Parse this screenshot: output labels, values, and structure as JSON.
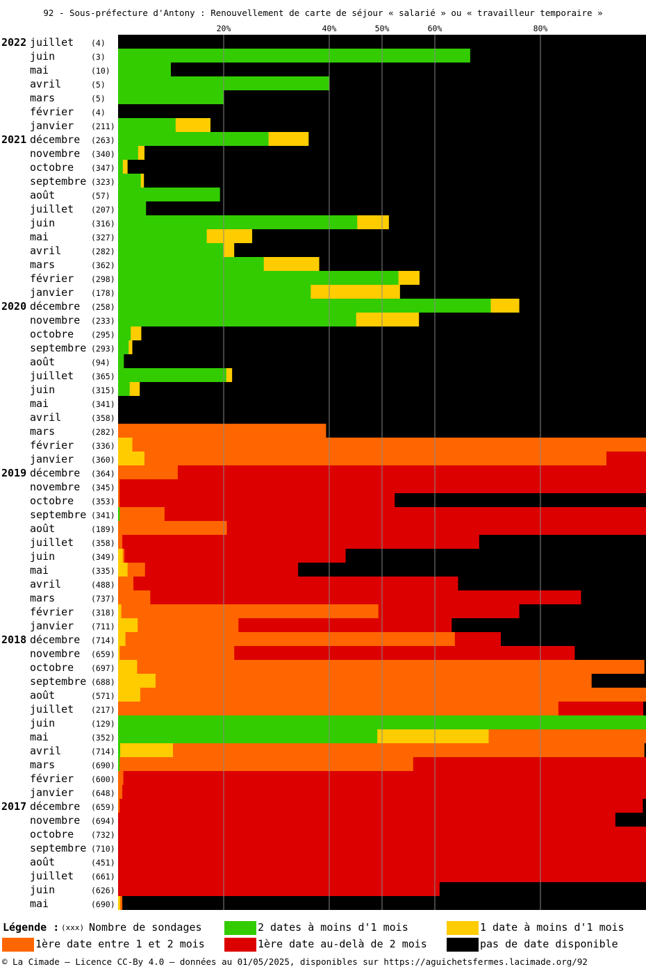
{
  "title": "92 - Sous-préfecture d'Antony : Renouvellement de carte de séjour « salarié » ou « travailleur temporaire »",
  "colors": {
    "green": "#33cc00",
    "yellow": "#ffcc00",
    "orange": "#ff6600",
    "red": "#dd0000",
    "black": "#000000",
    "grid": "#888888"
  },
  "legend": {
    "title": "Légende :",
    "count_note": "(xxx)",
    "count_label": "Nombre de sondages",
    "items": [
      {
        "key": "green",
        "label": "2 dates à moins d'1 mois"
      },
      {
        "key": "yellow",
        "label": "1 date à moins d'1 mois"
      },
      {
        "key": "orange",
        "label": "1ère date entre 1 et 2 mois"
      },
      {
        "key": "red",
        "label": "1ère date au-delà de 2 mois"
      },
      {
        "key": "black",
        "label": "pas de date disponible"
      }
    ]
  },
  "footer": "© La Cimade — Licence CC-By 4.0 — données au 01/05/2025, disponibles sur https://aguichetsfermes.lacimade.org/92",
  "chart_data": {
    "type": "bar",
    "orientation": "horizontal-stacked-100",
    "x_ticks": [
      "20%",
      "40%",
      "50%",
      "60%",
      "80%"
    ],
    "x_tick_values": [
      20,
      40,
      50,
      60,
      80
    ],
    "xlim": [
      0,
      100
    ],
    "series_order": [
      "green",
      "yellow",
      "orange",
      "red",
      "black"
    ],
    "rows": [
      {
        "year": "2022",
        "month": "juillet",
        "count": "(4)",
        "values": [
          0,
          0,
          0,
          0,
          100
        ]
      },
      {
        "year": "",
        "month": "juin",
        "count": "(3)",
        "values": [
          66.7,
          0,
          0,
          0,
          33.3
        ]
      },
      {
        "year": "",
        "month": "mai",
        "count": "(10)",
        "values": [
          10,
          0,
          0,
          0,
          90
        ]
      },
      {
        "year": "",
        "month": "avril",
        "count": "(5)",
        "values": [
          40,
          0,
          0,
          0,
          60
        ]
      },
      {
        "year": "",
        "month": "mars",
        "count": "(5)",
        "values": [
          20,
          0,
          0,
          0,
          80
        ]
      },
      {
        "year": "",
        "month": "février",
        "count": "(4)",
        "values": [
          0,
          0,
          0,
          0,
          100
        ]
      },
      {
        "year": "",
        "month": "janvier",
        "count": "(211)",
        "values": [
          10.9,
          6.6,
          0,
          0,
          82.5
        ]
      },
      {
        "year": "2021",
        "month": "décembre",
        "count": "(263)",
        "values": [
          28.5,
          7.6,
          0,
          0,
          63.9
        ]
      },
      {
        "year": "",
        "month": "novembre",
        "count": "(340)",
        "values": [
          3.8,
          1.2,
          0,
          0,
          95
        ]
      },
      {
        "year": "",
        "month": "octobre",
        "count": "(347)",
        "values": [
          0.9,
          0.9,
          0,
          0,
          98.2
        ]
      },
      {
        "year": "",
        "month": "septembre",
        "count": "(323)",
        "values": [
          4.3,
          0.6,
          0,
          0,
          95.1
        ]
      },
      {
        "year": "",
        "month": "août",
        "count": "(57)",
        "values": [
          19.3,
          0,
          0,
          0,
          80.7
        ]
      },
      {
        "year": "",
        "month": "juillet",
        "count": "(207)",
        "values": [
          5.3,
          0,
          0,
          0,
          94.7
        ]
      },
      {
        "year": "",
        "month": "juin",
        "count": "(316)",
        "values": [
          45.3,
          6,
          0,
          0,
          48.7
        ]
      },
      {
        "year": "",
        "month": "mai",
        "count": "(327)",
        "values": [
          16.8,
          8.6,
          0,
          0,
          74.6
        ]
      },
      {
        "year": "",
        "month": "avril",
        "count": "(282)",
        "values": [
          19.9,
          2.1,
          0,
          0,
          78
        ]
      },
      {
        "year": "",
        "month": "mars",
        "count": "(362)",
        "values": [
          27.6,
          10.5,
          0,
          0,
          61.9
        ]
      },
      {
        "year": "",
        "month": "février",
        "count": "(298)",
        "values": [
          53.1,
          4,
          0,
          0,
          42.9
        ]
      },
      {
        "year": "",
        "month": "janvier",
        "count": "(178)",
        "values": [
          36.5,
          16.9,
          0,
          0,
          46.6
        ]
      },
      {
        "year": "2020",
        "month": "décembre",
        "count": "(258)",
        "values": [
          70.6,
          5.4,
          0,
          0,
          24
        ]
      },
      {
        "year": "",
        "month": "novembre",
        "count": "(233)",
        "values": [
          45.1,
          11.9,
          0,
          0,
          43
        ]
      },
      {
        "year": "",
        "month": "octobre",
        "count": "(295)",
        "values": [
          2.4,
          2,
          0,
          0,
          95.6
        ]
      },
      {
        "year": "",
        "month": "septembre",
        "count": "(293)",
        "values": [
          2,
          0.7,
          0,
          0,
          97.3
        ]
      },
      {
        "year": "",
        "month": "août",
        "count": "(94)",
        "values": [
          1.1,
          0,
          0,
          0,
          98.9
        ]
      },
      {
        "year": "",
        "month": "juillet",
        "count": "(365)",
        "values": [
          20.5,
          1.1,
          0,
          0,
          78.4
        ]
      },
      {
        "year": "",
        "month": "juin",
        "count": "(315)",
        "values": [
          2.2,
          1.9,
          0,
          0,
          95.9
        ]
      },
      {
        "year": "",
        "month": "mai",
        "count": "(341)",
        "values": [
          0,
          0,
          0,
          0,
          100
        ]
      },
      {
        "year": "",
        "month": "avril",
        "count": "(358)",
        "values": [
          0,
          0,
          0,
          0,
          100
        ]
      },
      {
        "year": "",
        "month": "mars",
        "count": "(282)",
        "values": [
          0,
          0,
          39.4,
          0,
          60.6
        ]
      },
      {
        "year": "",
        "month": "février",
        "count": "(336)",
        "values": [
          0,
          2.7,
          97.3,
          0,
          0
        ]
      },
      {
        "year": "",
        "month": "janvier",
        "count": "(360)",
        "values": [
          0,
          5,
          87.5,
          7.5,
          0
        ]
      },
      {
        "year": "2019",
        "month": "décembre",
        "count": "(364)",
        "values": [
          0,
          0,
          11.3,
          88.7,
          0
        ]
      },
      {
        "year": "",
        "month": "novembre",
        "count": "(345)",
        "values": [
          0,
          0,
          0.3,
          99.7,
          0
        ]
      },
      {
        "year": "",
        "month": "octobre",
        "count": "(353)",
        "values": [
          0,
          0,
          0.3,
          52.1,
          47.6
        ]
      },
      {
        "year": "",
        "month": "septembre",
        "count": "(341)",
        "values": [
          0.3,
          0,
          8.5,
          91.2,
          0
        ]
      },
      {
        "year": "",
        "month": "août",
        "count": "(189)",
        "values": [
          0,
          0,
          20.6,
          79.4,
          0
        ]
      },
      {
        "year": "",
        "month": "juillet",
        "count": "(358)",
        "values": [
          0,
          0,
          0.8,
          67.6,
          31.6
        ]
      },
      {
        "year": "",
        "month": "juin",
        "count": "(349)",
        "values": [
          0,
          0.9,
          0.3,
          41.9,
          56.9
        ]
      },
      {
        "year": "",
        "month": "mai",
        "count": "(335)",
        "values": [
          0,
          1.8,
          3.3,
          29,
          65.9
        ]
      },
      {
        "year": "",
        "month": "avril",
        "count": "(488)",
        "values": [
          0,
          0,
          2.9,
          61.5,
          35.6
        ]
      },
      {
        "year": "",
        "month": "mars",
        "count": "(737)",
        "values": [
          0,
          0,
          6.1,
          81.6,
          12.3
        ]
      },
      {
        "year": "",
        "month": "février",
        "count": "(318)",
        "values": [
          0,
          0.6,
          48.7,
          26.7,
          24
        ]
      },
      {
        "year": "",
        "month": "janvier",
        "count": "(711)",
        "values": [
          0,
          3.7,
          19.1,
          40.4,
          36.8
        ]
      },
      {
        "year": "2018",
        "month": "décembre",
        "count": "(714)",
        "values": [
          0,
          1.4,
          62.4,
          8.7,
          27.5
        ]
      },
      {
        "year": "",
        "month": "novembre",
        "count": "(659)",
        "values": [
          0,
          0.3,
          21.7,
          64.5,
          13.5
        ]
      },
      {
        "year": "",
        "month": "octobre",
        "count": "(697)",
        "values": [
          0,
          3.6,
          96.1,
          0,
          0.3
        ]
      },
      {
        "year": "",
        "month": "septembre",
        "count": "(688)",
        "values": [
          0,
          7.1,
          82.6,
          0,
          10.3
        ]
      },
      {
        "year": "",
        "month": "août",
        "count": "(571)",
        "values": [
          0,
          4.2,
          95.8,
          0,
          0
        ]
      },
      {
        "year": "",
        "month": "juillet",
        "count": "(217)",
        "values": [
          0,
          0,
          83.4,
          16.1,
          0.5
        ]
      },
      {
        "year": "",
        "month": "juin",
        "count": "(129)",
        "values": [
          100,
          0,
          0,
          0,
          0
        ]
      },
      {
        "year": "",
        "month": "mai",
        "count": "(352)",
        "values": [
          49.1,
          21.1,
          29.8,
          0,
          0
        ]
      },
      {
        "year": "",
        "month": "avril",
        "count": "(714)",
        "values": [
          0.4,
          10,
          89.3,
          0,
          0.3
        ]
      },
      {
        "year": "",
        "month": "mars",
        "count": "(690)",
        "values": [
          0.3,
          0,
          55.6,
          44.1,
          0
        ]
      },
      {
        "year": "",
        "month": "février",
        "count": "(600)",
        "values": [
          0,
          0,
          1,
          99,
          0
        ]
      },
      {
        "year": "",
        "month": "janvier",
        "count": "(648)",
        "values": [
          0,
          0,
          0.8,
          99.2,
          0
        ]
      },
      {
        "year": "2017",
        "month": "décembre",
        "count": "(659)",
        "values": [
          0,
          0,
          0.3,
          99.1,
          0.6
        ]
      },
      {
        "year": "",
        "month": "novembre",
        "count": "(694)",
        "values": [
          0,
          0,
          0,
          94.2,
          5.8
        ]
      },
      {
        "year": "",
        "month": "octobre",
        "count": "(732)",
        "values": [
          0,
          0,
          0,
          100,
          0
        ]
      },
      {
        "year": "",
        "month": "septembre",
        "count": "(710)",
        "values": [
          0,
          0,
          0,
          100,
          0
        ]
      },
      {
        "year": "",
        "month": "août",
        "count": "(451)",
        "values": [
          0,
          0,
          0,
          100,
          0
        ]
      },
      {
        "year": "",
        "month": "juillet",
        "count": "(661)",
        "values": [
          0,
          0,
          0,
          100,
          0
        ]
      },
      {
        "year": "",
        "month": "juin",
        "count": "(626)",
        "values": [
          0,
          0,
          0,
          60.9,
          39.1
        ]
      },
      {
        "year": "",
        "month": "mai",
        "count": "(690)",
        "values": [
          0,
          0.4,
          0.4,
          0,
          99.2
        ]
      }
    ]
  }
}
